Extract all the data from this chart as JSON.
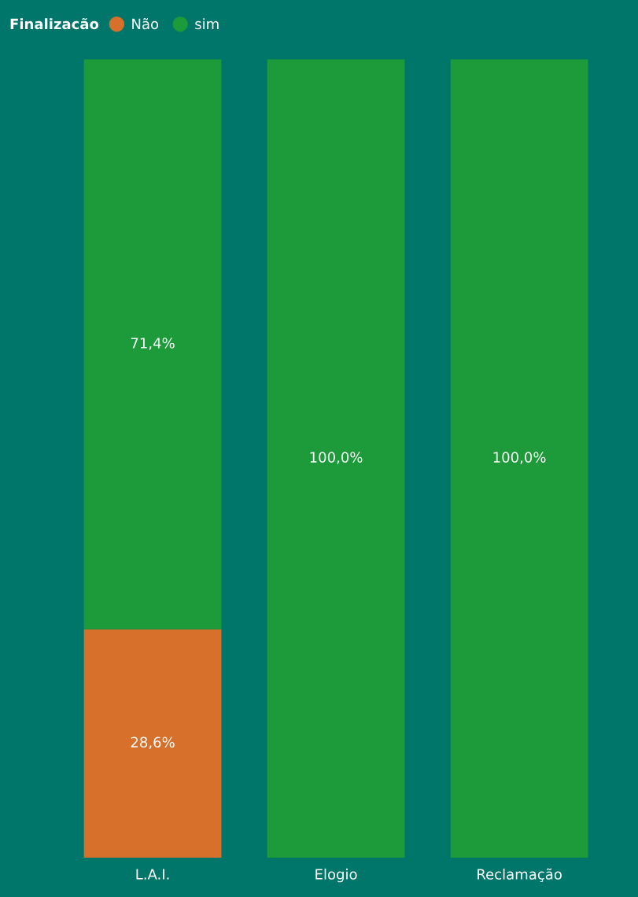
{
  "chart_data": {
    "type": "bar",
    "stacked": true,
    "legend": "top left",
    "legend_title": "Finalizacão",
    "categories": [
      "L.A.I.",
      "Elogio",
      "Reclamação"
    ],
    "series": [
      {
        "name": "Não",
        "color": "#d6702a",
        "values": [
          28.6,
          null,
          null
        ],
        "value_labels": [
          "28,6%",
          null,
          null
        ]
      },
      {
        "name": "sim",
        "color": "#1d9a3a",
        "values": [
          71.4,
          100,
          100
        ],
        "value_labels": [
          "71,4%",
          "100,0%",
          "100,0%"
        ]
      }
    ],
    "grid": false
  }
}
